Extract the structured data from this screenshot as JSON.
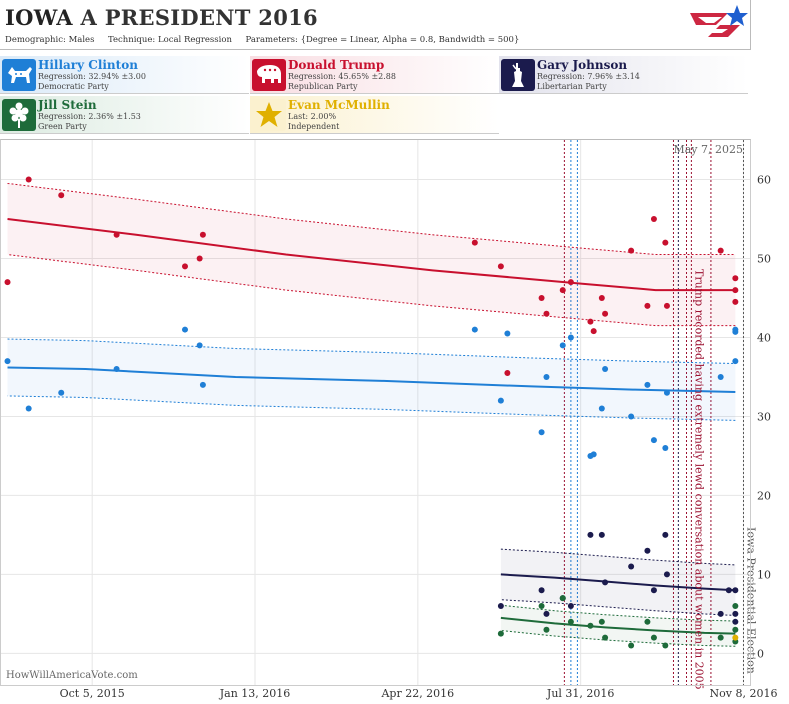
{
  "header": {
    "title_state": "IOWA",
    "title_race": "A PRESIDENT 2016",
    "demographic_label": "Demographic:",
    "demographic_value": "Males",
    "technique_label": "Technique:",
    "technique_value": "Local Regression",
    "parameters_label": "Parameters:",
    "parameters_value": "{Degree = Linear, Alpha = 0.8, Bandwidth = 500}"
  },
  "candidates": [
    {
      "name": "Hillary Clinton",
      "stat": "Regression: 32.94% ±3.00",
      "party": "Democratic Party",
      "color": "#1f7fd6",
      "bg": "#dbeaf8",
      "icon": "donkey-icon"
    },
    {
      "name": "Donald Trump",
      "stat": "Regression: 45.65% ±2.88",
      "party": "Republican Party",
      "color": "#c8102e",
      "bg": "#f8dde2",
      "icon": "elephant-icon"
    },
    {
      "name": "Gary Johnson",
      "stat": "Regression: 7.96% ±3.14",
      "party": "Libertarian Party",
      "color": "#1b1b4d",
      "bg": "#e2e2ec",
      "icon": "liberty-statue-icon"
    },
    {
      "name": "Jill Stein",
      "stat": "Regression: 2.36% ±1.53",
      "party": "Green Party",
      "color": "#1e6b3a",
      "bg": "#dcebe1",
      "icon": "flower-icon"
    },
    {
      "name": "Evan McMullin",
      "stat": "Last: 2.00%",
      "party": "Independent",
      "color": "#e0b000",
      "bg": "#fbf1cf",
      "icon": "star-icon"
    }
  ],
  "chart_data": {
    "type": "scatter",
    "date_label": "May 7, 2025",
    "watermark": "HowWillAmericaVote.com",
    "x_ticks": [
      "2015-10-05",
      "2016-01-13",
      "2016-04-22",
      "2016-07-31",
      "2016-11-08"
    ],
    "x_tick_labels": [
      "Oct 5, 2015",
      "Jan 13, 2016",
      "Apr 22, 2016",
      "Jul 31, 2016",
      "Nov 8, 2016"
    ],
    "xlim": [
      "2015-08-10",
      "2016-11-12"
    ],
    "ylim": [
      -4,
      65
    ],
    "y_ticks": [
      0,
      10,
      20,
      30,
      40,
      50,
      60
    ],
    "grid": true,
    "annotations": [
      {
        "text": "Trump recorded having extremely lewd conversation about women in 2005",
        "date": "2016-10-07",
        "color": "#9b1030"
      },
      {
        "text": "Iowa Presidential Election",
        "date": "2016-11-08",
        "color": "#555555"
      }
    ],
    "event_lines": [
      {
        "date": "2016-07-21",
        "color": "#9b1030"
      },
      {
        "date": "2016-07-25",
        "color": "#1f7fd6"
      },
      {
        "date": "2016-07-29",
        "color": "#1f7fd6"
      },
      {
        "date": "2016-09-26",
        "color": "#9b1030"
      },
      {
        "date": "2016-09-29",
        "color": "#1b1b4d"
      },
      {
        "date": "2016-10-04",
        "color": "#9b1030"
      },
      {
        "date": "2016-10-07",
        "color": "#9b1030"
      },
      {
        "date": "2016-10-19",
        "color": "#9b1030"
      },
      {
        "date": "2016-11-08",
        "color": "#555555"
      }
    ],
    "series": [
      {
        "name": "Donald Trump",
        "color": "#c8102e",
        "points": [
          [
            "2015-08-14",
            47
          ],
          [
            "2015-08-27",
            60
          ],
          [
            "2015-09-16",
            58
          ],
          [
            "2015-10-20",
            53
          ],
          [
            "2015-12-01",
            49
          ],
          [
            "2015-12-10",
            50
          ],
          [
            "2015-12-12",
            53
          ],
          [
            "2016-05-27",
            52
          ],
          [
            "2016-06-12",
            49
          ],
          [
            "2016-06-16",
            35.5
          ],
          [
            "2016-07-07",
            45
          ],
          [
            "2016-07-10",
            43
          ],
          [
            "2016-07-20",
            46
          ],
          [
            "2016-07-25",
            47
          ],
          [
            "2016-08-06",
            42
          ],
          [
            "2016-08-08",
            40.8
          ],
          [
            "2016-08-13",
            45
          ],
          [
            "2016-08-15",
            43
          ],
          [
            "2016-08-31",
            51
          ],
          [
            "2016-09-10",
            44
          ],
          [
            "2016-09-14",
            55
          ],
          [
            "2016-09-21",
            52
          ],
          [
            "2016-09-22",
            44
          ],
          [
            "2016-10-25",
            51
          ],
          [
            "2016-11-03",
            47.5
          ],
          [
            "2016-11-03",
            46
          ],
          [
            "2016-11-03",
            44.5
          ]
        ],
        "trend": [
          [
            "2015-08-14",
            55
          ],
          [
            "2015-11-01",
            53
          ],
          [
            "2016-02-01",
            50.5
          ],
          [
            "2016-05-01",
            48.5
          ],
          [
            "2016-08-01",
            46.8
          ],
          [
            "2016-09-15",
            46
          ],
          [
            "2016-11-03",
            46
          ]
        ],
        "band": 4.5
      },
      {
        "name": "Hillary Clinton",
        "color": "#1f7fd6",
        "points": [
          [
            "2015-08-14",
            37
          ],
          [
            "2015-08-27",
            31
          ],
          [
            "2015-09-16",
            33
          ],
          [
            "2015-10-20",
            36
          ],
          [
            "2015-12-01",
            41
          ],
          [
            "2015-12-10",
            39
          ],
          [
            "2015-12-12",
            34
          ],
          [
            "2016-05-27",
            41
          ],
          [
            "2016-06-12",
            32
          ],
          [
            "2016-06-16",
            40.5
          ],
          [
            "2016-07-07",
            28
          ],
          [
            "2016-07-10",
            35
          ],
          [
            "2016-07-20",
            39
          ],
          [
            "2016-07-25",
            40
          ],
          [
            "2016-08-06",
            25
          ],
          [
            "2016-08-08",
            25.2
          ],
          [
            "2016-08-13",
            31
          ],
          [
            "2016-08-15",
            36
          ],
          [
            "2016-08-31",
            30
          ],
          [
            "2016-09-10",
            34
          ],
          [
            "2016-09-14",
            27
          ],
          [
            "2016-09-21",
            26
          ],
          [
            "2016-09-22",
            33
          ],
          [
            "2016-10-25",
            35
          ],
          [
            "2016-11-03",
            37
          ],
          [
            "2016-11-03",
            40.7
          ],
          [
            "2016-11-03",
            41
          ]
        ],
        "trend": [
          [
            "2015-08-14",
            36.2
          ],
          [
            "2015-10-01",
            36
          ],
          [
            "2016-01-01",
            35
          ],
          [
            "2016-04-01",
            34.5
          ],
          [
            "2016-07-01",
            33.8
          ],
          [
            "2016-09-01",
            33.4
          ],
          [
            "2016-11-03",
            33.1
          ]
        ],
        "band": 3.6
      },
      {
        "name": "Gary Johnson",
        "color": "#1b1b4d",
        "points": [
          [
            "2016-06-12",
            6
          ],
          [
            "2016-07-07",
            8
          ],
          [
            "2016-07-10",
            5
          ],
          [
            "2016-07-20",
            7
          ],
          [
            "2016-07-25",
            6
          ],
          [
            "2016-08-06",
            15
          ],
          [
            "2016-08-13",
            15
          ],
          [
            "2016-08-15",
            9
          ],
          [
            "2016-08-31",
            11
          ],
          [
            "2016-09-10",
            13
          ],
          [
            "2016-09-14",
            8
          ],
          [
            "2016-09-21",
            15
          ],
          [
            "2016-09-22",
            10
          ],
          [
            "2016-10-25",
            5
          ],
          [
            "2016-10-30",
            8
          ],
          [
            "2016-11-03",
            8
          ],
          [
            "2016-11-03",
            5
          ],
          [
            "2016-11-03",
            4
          ]
        ],
        "trend": [
          [
            "2016-06-12",
            10
          ],
          [
            "2016-07-15",
            9.6
          ],
          [
            "2016-08-15",
            9.1
          ],
          [
            "2016-09-15",
            8.6
          ],
          [
            "2016-10-15",
            8.2
          ],
          [
            "2016-11-03",
            8
          ]
        ],
        "band": 3.2
      },
      {
        "name": "Jill Stein",
        "color": "#1e6b3a",
        "points": [
          [
            "2016-06-12",
            2.5
          ],
          [
            "2016-07-07",
            6
          ],
          [
            "2016-07-10",
            3
          ],
          [
            "2016-07-20",
            7
          ],
          [
            "2016-07-25",
            4
          ],
          [
            "2016-08-06",
            3.5
          ],
          [
            "2016-08-13",
            4
          ],
          [
            "2016-08-15",
            2
          ],
          [
            "2016-08-31",
            1
          ],
          [
            "2016-09-10",
            4
          ],
          [
            "2016-09-14",
            2
          ],
          [
            "2016-09-21",
            1
          ],
          [
            "2016-10-25",
            2
          ],
          [
            "2016-11-03",
            6
          ],
          [
            "2016-11-03",
            3
          ],
          [
            "2016-11-03",
            1.5
          ]
        ],
        "trend": [
          [
            "2016-06-12",
            4.5
          ],
          [
            "2016-07-15",
            3.8
          ],
          [
            "2016-08-15",
            3.3
          ],
          [
            "2016-09-15",
            2.9
          ],
          [
            "2016-10-15",
            2.6
          ],
          [
            "2016-11-03",
            2.5
          ]
        ],
        "band": 1.6
      },
      {
        "name": "Evan McMullin",
        "color": "#e0b000",
        "points": [
          [
            "2016-11-03",
            2
          ]
        ],
        "trend": [],
        "band": 0
      }
    ]
  }
}
